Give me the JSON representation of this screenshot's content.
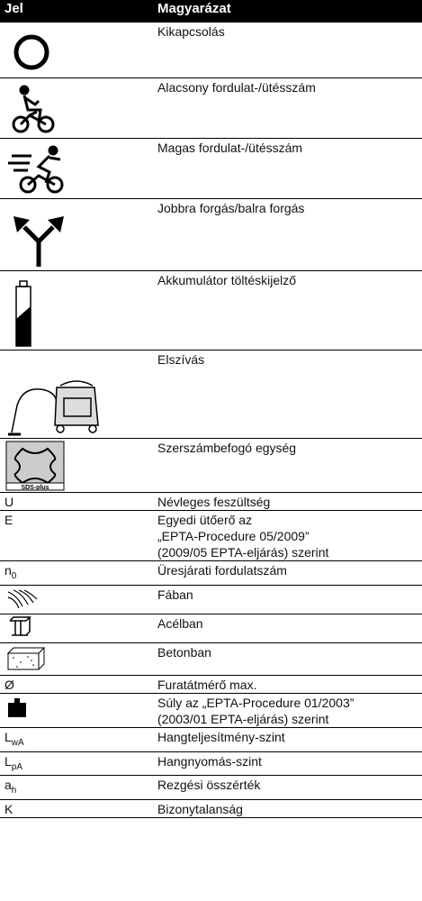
{
  "table": {
    "header": [
      "Jel",
      "Magyarázat"
    ],
    "rows": [
      {
        "description": "Kikapcsolás"
      },
      {
        "description": "Alacsony fordulat-/ütésszám"
      },
      {
        "description": "Magas fordulat-/ütésszám"
      },
      {
        "description": "Jobbra forgás/balra forgás"
      },
      {
        "description": "Akkumulátor töltéskijelző"
      },
      {
        "description": "Elszívás"
      },
      {
        "icon_label": "SDS-plus",
        "description": "Szerszámbefogó egység"
      },
      {
        "symbol": "U",
        "description": "Névleges feszültség"
      },
      {
        "symbol": "E",
        "description": "Egyedi ütőerő az\n„EPTA-Procedure 05/2009”\n(2009/05 EPTA-eljárás) szerint"
      },
      {
        "symbol": "n",
        "symbol_sub": "0",
        "description": "Üresjárati fordulatszám"
      },
      {
        "description": "Fában"
      },
      {
        "description": "Acélban"
      },
      {
        "description": "Betonban"
      },
      {
        "symbol": "Ø",
        "description": "Furatátmérő max."
      },
      {
        "description": "Súly az „EPTA-Procedure 01/2003”\n(2003/01 EPTA-eljárás) szerint"
      },
      {
        "symbol": "L",
        "symbol_sub": "wA",
        "description": "Hangteljesítmény-szint"
      },
      {
        "symbol": "L",
        "symbol_sub": "pA",
        "description": "Hangnyomás-szint"
      },
      {
        "symbol": "a",
        "symbol_sub": "h",
        "description": "Rezgési összérték"
      },
      {
        "symbol": "K",
        "description": "Bizonytalanság"
      }
    ]
  }
}
